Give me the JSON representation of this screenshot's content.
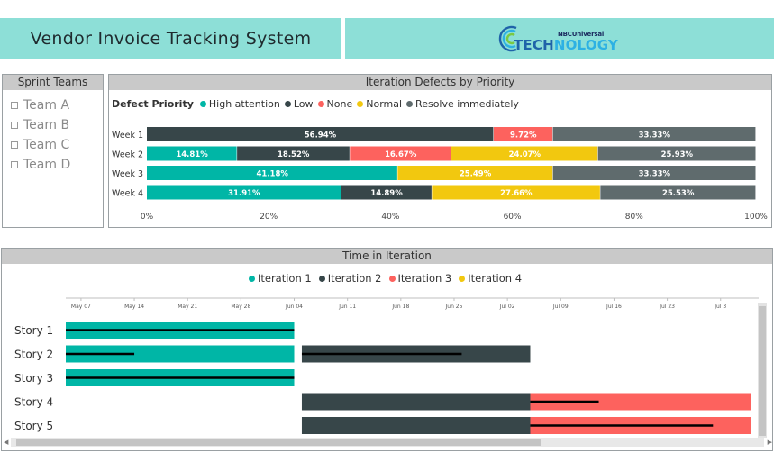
{
  "header": {
    "title": "Vendor Invoice Tracking System",
    "logo_top": "NBCUniversal",
    "logo_part_a": "TECH",
    "logo_part_b": "NOLOGY"
  },
  "slicer": {
    "title": "Sprint Teams",
    "items": [
      "Team A",
      "Team B",
      "Team C",
      "Team D"
    ]
  },
  "colors": {
    "high_attention": "#00b6a6",
    "low": "#374649",
    "none": "#fd625e",
    "normal": "#f2c80f",
    "resolve_immediately": "#5f6b6d"
  },
  "defects": {
    "title": "Iteration Defects by Priority",
    "legend_title": "Defect Priority",
    "legend": [
      "High attention",
      "Low",
      "None",
      "Normal",
      "Resolve immediately"
    ]
  },
  "chart_data": [
    {
      "type": "bar",
      "orientation": "horizontal",
      "stacked": "100%",
      "title": "Iteration Defects by Priority",
      "categories": [
        "Week 1",
        "Week 2",
        "Week 3",
        "Week 4"
      ],
      "x_ticks": [
        "0%",
        "20%",
        "40%",
        "60%",
        "80%",
        "100%"
      ],
      "xlim": [
        0,
        100
      ],
      "series": [
        {
          "name": "High attention",
          "values": [
            0,
            14.81,
            41.18,
            31.91
          ]
        },
        {
          "name": "Low",
          "values": [
            56.94,
            18.52,
            0,
            14.89
          ]
        },
        {
          "name": "None",
          "values": [
            9.72,
            16.67,
            0,
            0
          ]
        },
        {
          "name": "Normal",
          "values": [
            0,
            24.07,
            25.49,
            27.66
          ]
        },
        {
          "name": "Resolve immediately",
          "values": [
            33.33,
            25.93,
            33.33,
            25.53
          ]
        }
      ],
      "labels": [
        [
          "56.94%",
          "9.72%",
          "33.33%"
        ],
        [
          "14.81%",
          "18.52%",
          "16.67%",
          "24.07%",
          "25.93%"
        ],
        [
          "41.18%",
          "25.49%",
          "33.33%"
        ],
        [
          "31.91%",
          "14.89%",
          "27.66%",
          "25.53%"
        ]
      ]
    },
    {
      "type": "gantt",
      "title": "Time in Iteration",
      "legend": [
        "Iteration 1",
        "Iteration 2",
        "Iteration 3",
        "Iteration 4"
      ],
      "date_ticks": [
        "May 07",
        "May 14",
        "May 21",
        "May 28",
        "Jun 04",
        "Jun 11",
        "Jun 18",
        "Jun 25",
        "Jul 02",
        "Jul 09",
        "Jul 16",
        "Jul 23",
        "Jul 3"
      ],
      "axis_start_day": 0,
      "axis_days": 91,
      "rows": [
        {
          "label": "Story 1",
          "segments": [
            {
              "iteration": 1,
              "start": 0,
              "end": 30
            }
          ],
          "progress": [
            {
              "start": 0,
              "end": 30
            }
          ]
        },
        {
          "label": "Story 2",
          "segments": [
            {
              "iteration": 1,
              "start": 0,
              "end": 30
            },
            {
              "iteration": 2,
              "start": 31,
              "end": 61
            }
          ],
          "progress": [
            {
              "start": 0,
              "end": 9
            },
            {
              "start": 31,
              "end": 52
            }
          ]
        },
        {
          "label": "Story 3",
          "segments": [
            {
              "iteration": 1,
              "start": 0,
              "end": 30
            }
          ],
          "progress": [
            {
              "start": 0,
              "end": 30
            }
          ]
        },
        {
          "label": "Story 4",
          "segments": [
            {
              "iteration": 2,
              "start": 31,
              "end": 61
            },
            {
              "iteration": 3,
              "start": 61,
              "end": 90
            }
          ],
          "progress": [
            {
              "start": 61,
              "end": 70
            }
          ]
        },
        {
          "label": "Story 5",
          "segments": [
            {
              "iteration": 2,
              "start": 31,
              "end": 61
            },
            {
              "iteration": 3,
              "start": 61,
              "end": 90
            }
          ],
          "progress": [
            {
              "start": 61,
              "end": 85
            }
          ]
        }
      ]
    }
  ],
  "timeline": {
    "title": "Time in Iteration",
    "legend": [
      "Iteration 1",
      "Iteration 2",
      "Iteration 3",
      "Iteration 4"
    ]
  }
}
